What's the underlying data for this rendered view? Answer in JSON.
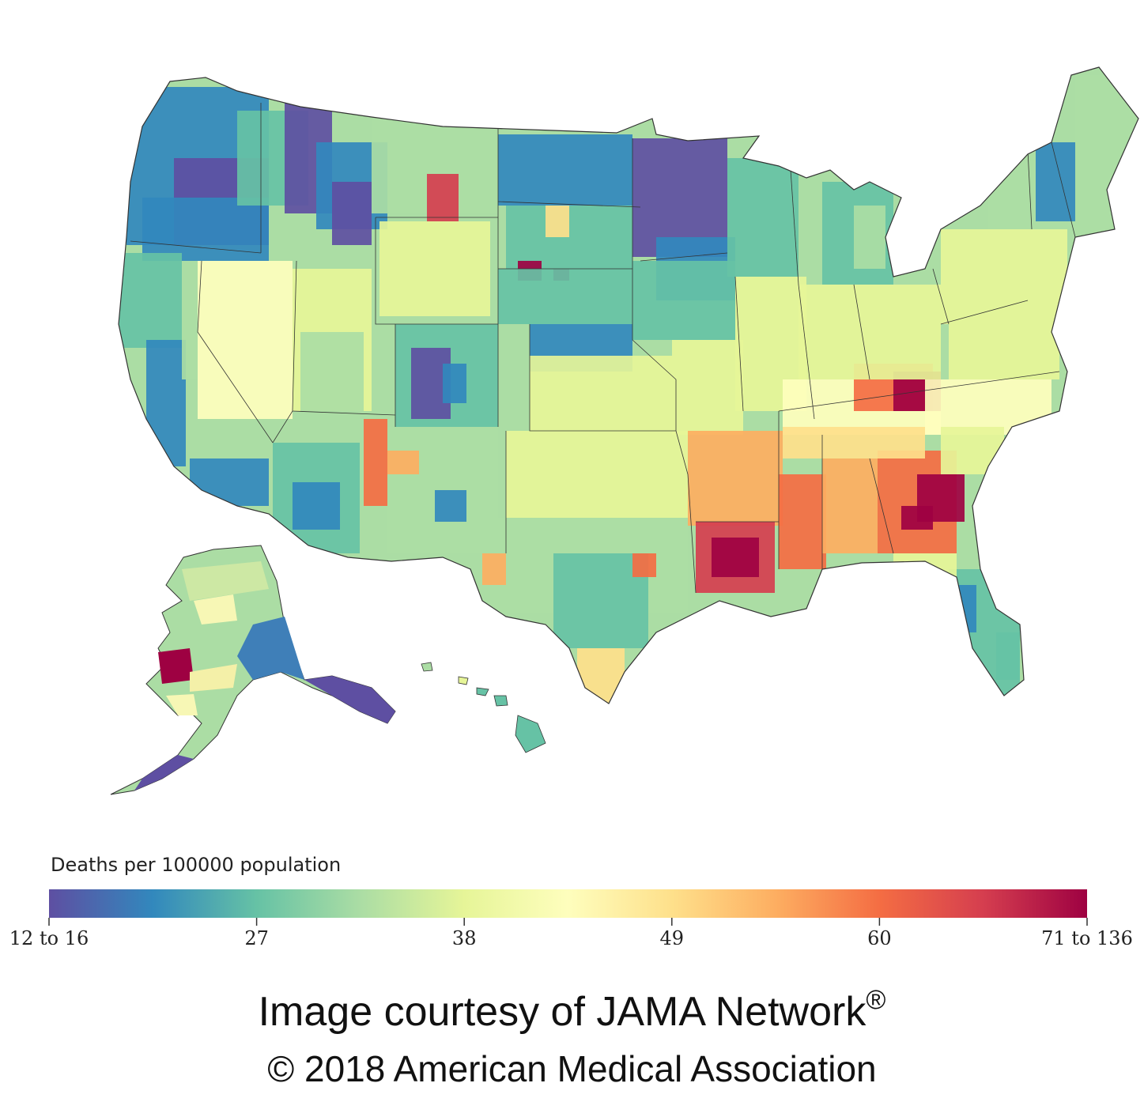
{
  "legend": {
    "title": "Deaths per 100000 population",
    "ticks": [
      "12 to 16",
      "27",
      "38",
      "49",
      "60",
      "71 to 136"
    ],
    "tick_values": [
      12,
      27,
      38,
      49,
      60,
      71
    ],
    "colors": [
      "#5e4fa2",
      "#3288bd",
      "#66c2a5",
      "#abdda4",
      "#e6f598",
      "#fefebd",
      "#fee08b",
      "#fdae61",
      "#f46d43",
      "#d53e4f",
      "#9e0142"
    ]
  },
  "credit": {
    "line1": "Image courtesy of JAMA Network",
    "trademark": "®",
    "line2": "© 2018 American Medical Association"
  },
  "map": {
    "regions": [
      "contiguous-us",
      "alaska",
      "hawaii"
    ],
    "fill_colors": {
      "low": "#5e4fa2",
      "low_mid": "#3288bd",
      "mid_low": "#66c2a5",
      "mid": "#e6f598",
      "mid_high": "#fdae61",
      "high": "#d53e4f",
      "max": "#9e0142"
    }
  }
}
